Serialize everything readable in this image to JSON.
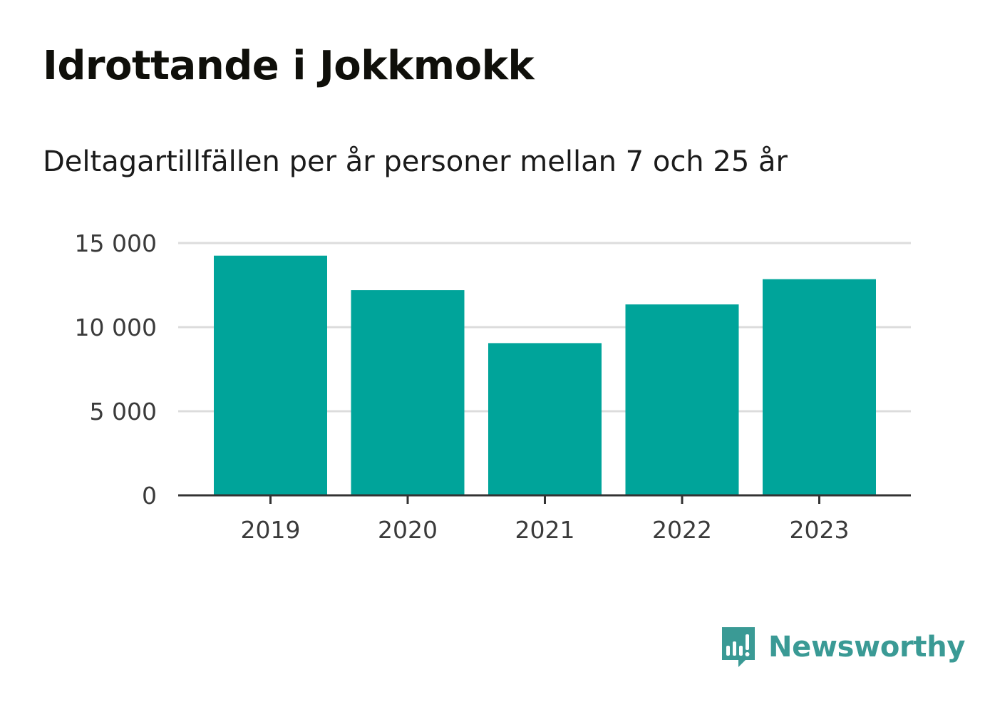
{
  "header": {
    "title": "Idrottande i Jokkmokk",
    "subtitle": "Deltagartillfällen per år personer mellan 7 och 25 år"
  },
  "chart_data": {
    "type": "bar",
    "title": "Idrottande i Jokkmokk",
    "subtitle": "Deltagartillfällen per år personer mellan 7 och 25 år",
    "xlabel": "",
    "ylabel": "",
    "categories": [
      "2019",
      "2020",
      "2021",
      "2022",
      "2023"
    ],
    "values": [
      14250,
      12200,
      9050,
      11350,
      12850
    ],
    "ylim": [
      0,
      15000
    ],
    "yticks": [
      0,
      5000,
      10000,
      15000
    ],
    "ytick_labels": [
      "0",
      "5 000",
      "10 000",
      "15 000"
    ],
    "grid": true,
    "legend": "none",
    "bar_color": "#00a49a",
    "grid_color": "#dcdcdc",
    "axis_color": "#333333"
  },
  "branding": {
    "logo_text": "Newsworthy",
    "logo_icon": "newsworthy-chart-bubble-icon",
    "color": "#3a9a95"
  }
}
